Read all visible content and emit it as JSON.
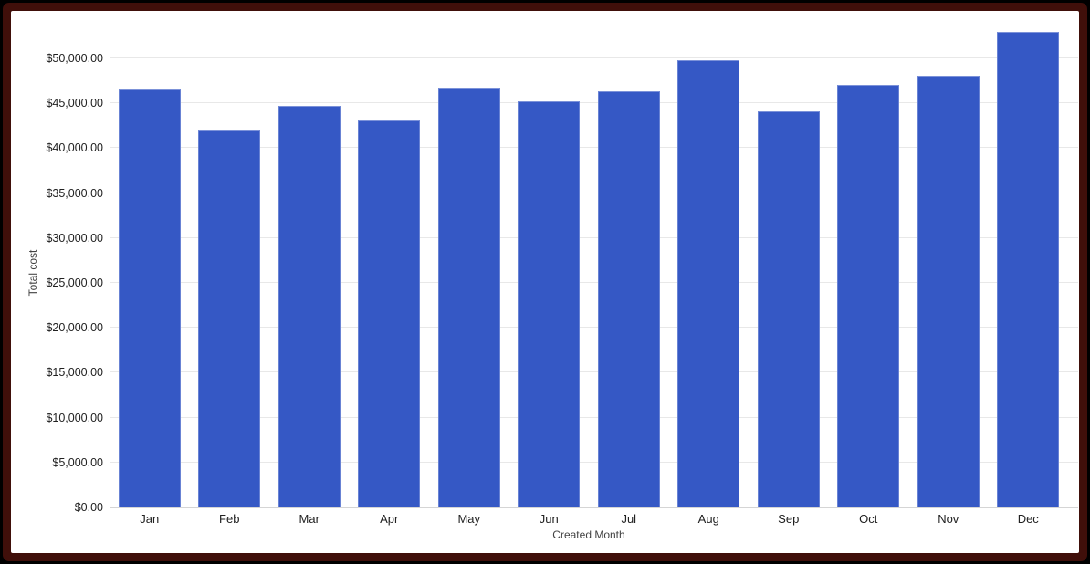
{
  "chart_data": {
    "type": "bar",
    "title": "",
    "xlabel": "Created Month",
    "ylabel": "Total cost",
    "categories": [
      "Jan",
      "Feb",
      "Mar",
      "Apr",
      "May",
      "Jun",
      "Jul",
      "Aug",
      "Sep",
      "Oct",
      "Nov",
      "Dec"
    ],
    "values": [
      46550,
      42100,
      44700,
      43100,
      46700,
      45200,
      46350,
      49750,
      44100,
      47050,
      48100,
      52950
    ],
    "y_ticks": [
      {
        "value": 0,
        "label": "$0.00"
      },
      {
        "value": 5000,
        "label": "$5,000.00"
      },
      {
        "value": 10000,
        "label": "$10,000.00"
      },
      {
        "value": 15000,
        "label": "$15,000.00"
      },
      {
        "value": 20000,
        "label": "$20,000.00"
      },
      {
        "value": 25000,
        "label": "$25,000.00"
      },
      {
        "value": 30000,
        "label": "$30,000.00"
      },
      {
        "value": 35000,
        "label": "$35,000.00"
      },
      {
        "value": 40000,
        "label": "$40,000.00"
      },
      {
        "value": 45000,
        "label": "$45,000.00"
      },
      {
        "value": 50000,
        "label": "$50,000.00"
      }
    ],
    "ylim": [
      0,
      53150
    ],
    "grid": true,
    "legend": "none"
  },
  "colors": {
    "bar": "#3558c5",
    "grid_line": "#e8e8e8",
    "axis_line": "#d5d5d5",
    "tick_text": "#212121",
    "axis_title_text": "#424242",
    "frame_outer": "#000000",
    "frame_border": "#400f0a",
    "canvas_background": "#ffffff"
  }
}
